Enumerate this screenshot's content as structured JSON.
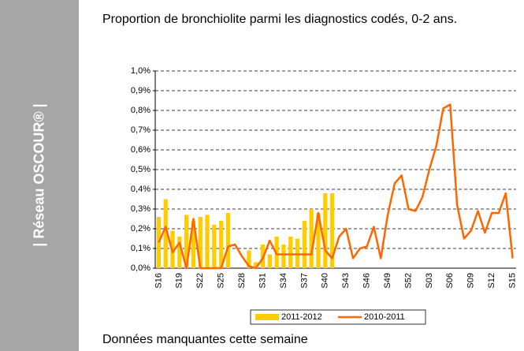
{
  "sidebar": "| Réseau OSCOUR® |",
  "note": "Données manquantes cette semaine",
  "chart_data": {
    "type": "bar_line",
    "title": "Proportion de bronchiolite parmi les diagnostics codés, 0-2 ans.",
    "categories": [
      "S16",
      null,
      null,
      "S19",
      null,
      null,
      "S22",
      null,
      null,
      "S25",
      null,
      null,
      "S28",
      null,
      null,
      "S31",
      null,
      null,
      "S34",
      null,
      null,
      "S37",
      null,
      null,
      "S40",
      null,
      null,
      "S43",
      null,
      null,
      "S46",
      null,
      null,
      "S49",
      null,
      null,
      "S52",
      null,
      null,
      "S03",
      null,
      null,
      "S06",
      null,
      null,
      "S09",
      null,
      null,
      "S12",
      null,
      null,
      "S15"
    ],
    "series": [
      {
        "name": "2011-2012",
        "type": "bar",
        "color": "#ffcc00",
        "values": [
          0.26,
          0.35,
          0.19,
          0.16,
          0.27,
          0.24,
          0.26,
          0.27,
          0.22,
          0.24,
          0.28,
          0,
          0,
          0.09,
          0.03,
          0.12,
          0.07,
          0.16,
          0.12,
          0.16,
          0.15,
          0.24,
          0.3,
          0.28,
          0.38,
          0.38,
          null,
          null,
          null,
          null,
          null,
          null,
          null,
          null,
          null,
          null,
          null,
          null,
          null,
          null,
          null,
          null,
          null,
          null,
          null,
          null,
          null,
          null,
          null,
          null,
          null,
          null
        ]
      },
      {
        "name": "2010-2011",
        "type": "line",
        "color": "#ff6600",
        "values": [
          0.13,
          0.21,
          0.08,
          0.13,
          0,
          0.25,
          0,
          0,
          0,
          0,
          0.11,
          0.12,
          0.06,
          0.01,
          0,
          0.05,
          0.14,
          0.07,
          0.07,
          0.07,
          0.07,
          0.07,
          0.07,
          0.28,
          0.09,
          0.05,
          0.16,
          0.2,
          0.05,
          0.1,
          0.11,
          0.21,
          0.05,
          0.27,
          0.43,
          0.47,
          0.3,
          0.29,
          0.36,
          0.5,
          0.62,
          0.81,
          0.83,
          0.32,
          0.15,
          0.19,
          0.29,
          0.18,
          0.28,
          0.28,
          0.38,
          0.05
        ]
      }
    ],
    "ylim": [
      0,
      1.0
    ],
    "yticks": [
      {
        "value": 0,
        "label": "0,0%"
      },
      {
        "value": 0.1,
        "label": "0,1%"
      },
      {
        "value": 0.2,
        "label": "0,2%"
      },
      {
        "value": 0.3,
        "label": "0,3%"
      },
      {
        "value": 0.4,
        "label": "0,4%"
      },
      {
        "value": 0.5,
        "label": "0,5%"
      },
      {
        "value": 0.6,
        "label": "0,6%"
      },
      {
        "value": 0.7,
        "label": "0,7%"
      },
      {
        "value": 0.8,
        "label": "0,8%"
      },
      {
        "value": 0.9,
        "label": "0,9%"
      },
      {
        "value": 1.0,
        "label": "1,0%"
      }
    ],
    "grid": true
  }
}
